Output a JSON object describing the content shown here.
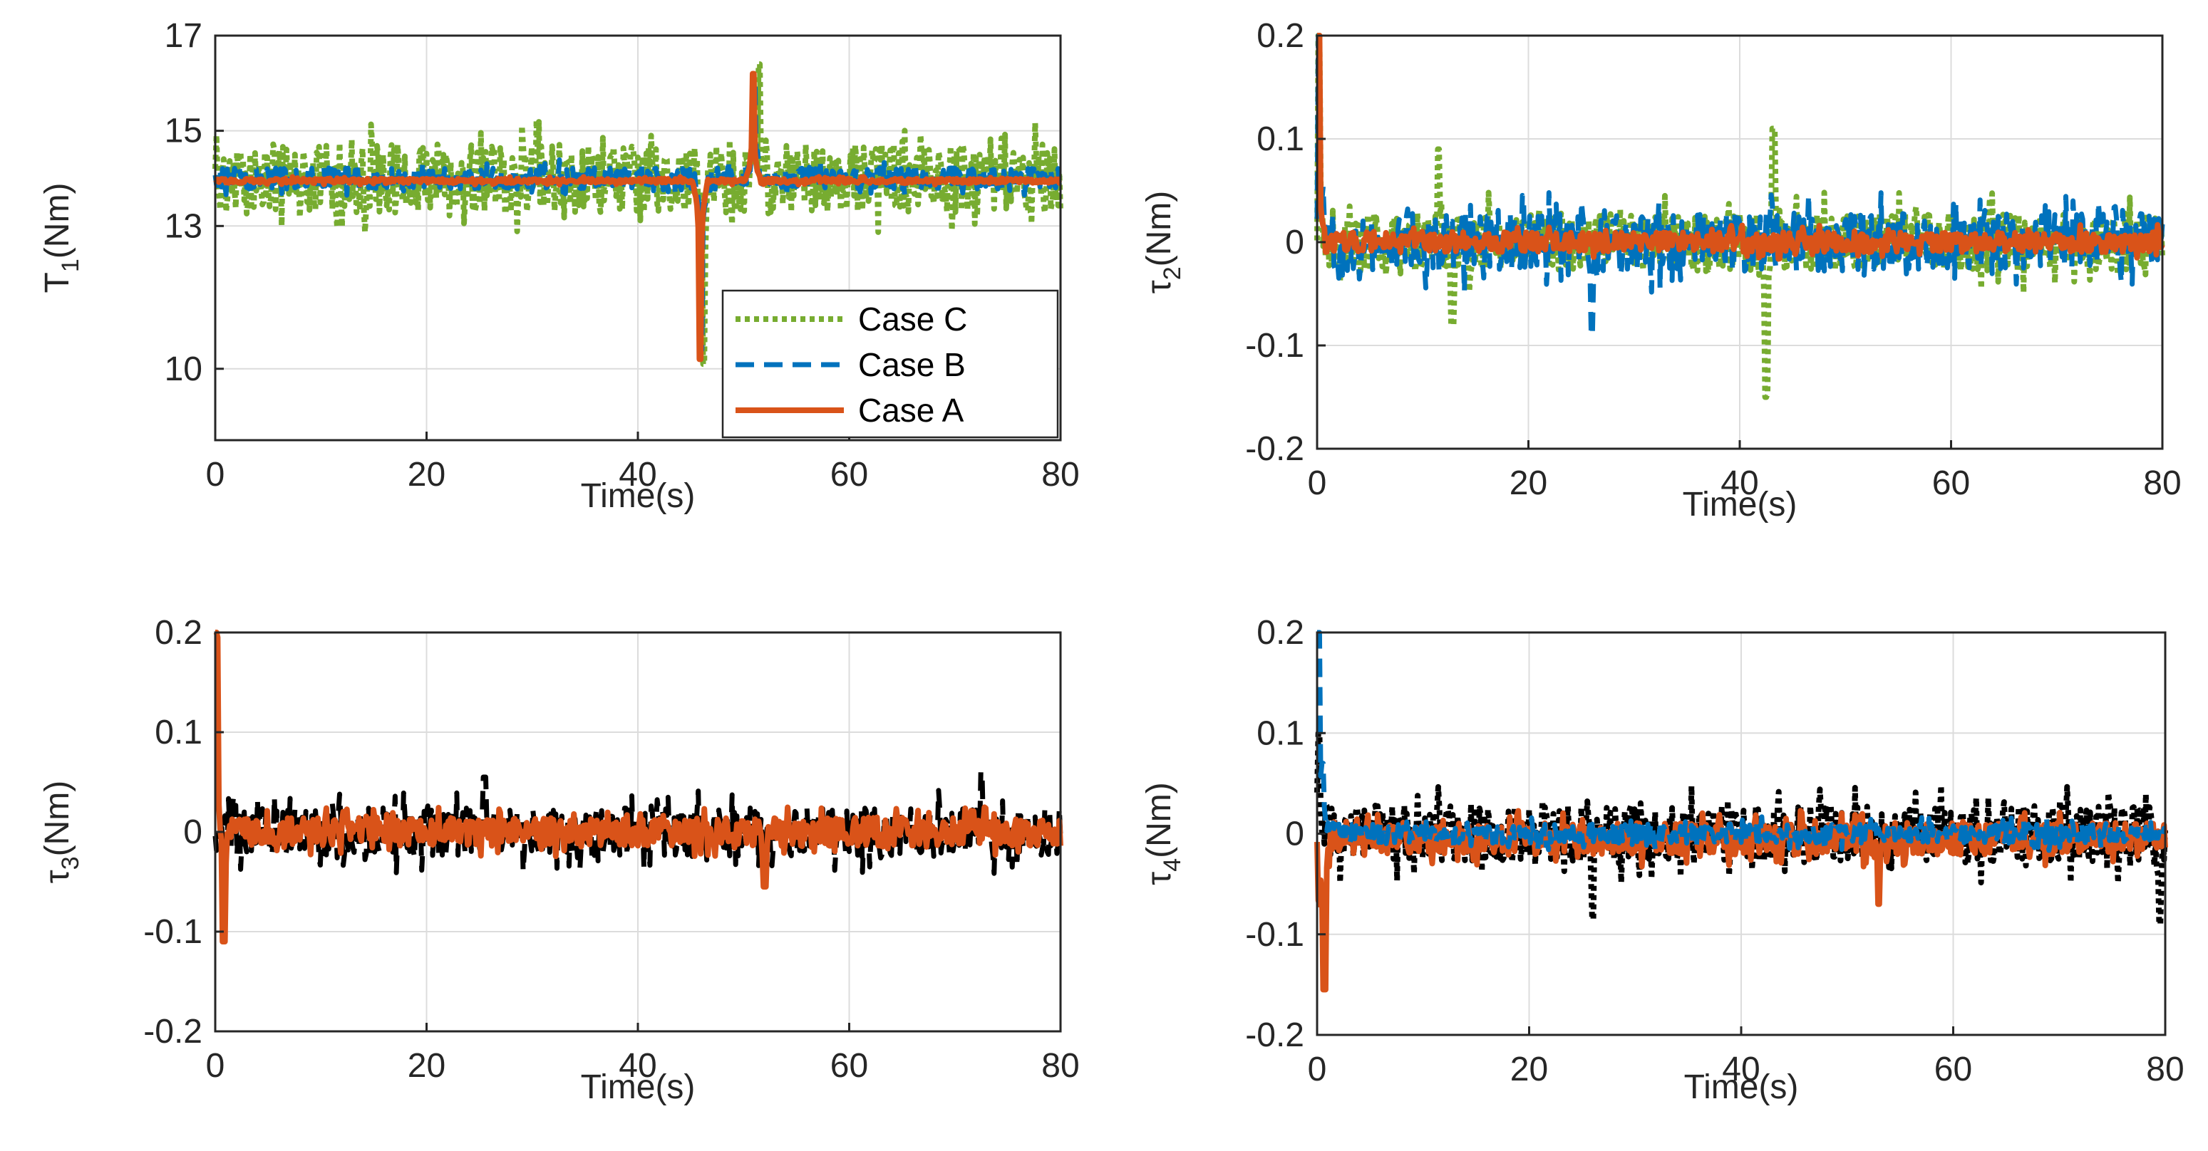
{
  "figure": {
    "xlabel": "Time(s)",
    "x_tick_labels": [
      "0",
      "20",
      "40",
      "60",
      "80"
    ],
    "colors": {
      "case_c": "#77AC30",
      "case_b": "#0072BD",
      "case_a": "#D95319",
      "black": "#000000"
    }
  },
  "chart_data": [
    {
      "type": "line",
      "panel": "top-left",
      "ylabel": {
        "main": "T",
        "sub": "1",
        "rest": "(Nm)"
      },
      "xlim": [
        0,
        80
      ],
      "ylim": [
        8.5,
        17
      ],
      "yticks": [
        10,
        13,
        15,
        17
      ],
      "ytick_labels": [
        "10",
        "13",
        "15",
        "17"
      ],
      "grid": true,
      "legend": {
        "position": "bottom-right",
        "entries": [
          "Case C",
          "Case B",
          "Case A"
        ]
      },
      "series": [
        {
          "name": "Case C",
          "color": "#77AC30",
          "style": "dotted",
          "center": 14.0,
          "noise": 0.9,
          "spikes": [
            [
              46.2,
              10.1
            ],
            [
              51.5,
              16.4
            ]
          ]
        },
        {
          "name": "Case B",
          "color": "#0072BD",
          "style": "dashed",
          "center": 14.0,
          "noise": 0.28,
          "spikes": [
            [
              46.0,
              10.4
            ],
            [
              51.0,
              16.1
            ]
          ]
        },
        {
          "name": "Case A",
          "color": "#D95319",
          "style": "solid",
          "center": 13.95,
          "noise": 0.06,
          "spikes": [
            [
              45.9,
              10.2
            ],
            [
              50.9,
              16.2
            ]
          ]
        }
      ]
    },
    {
      "type": "line",
      "panel": "top-right",
      "ylabel": {
        "main": "τ",
        "sub": "2",
        "rest": "(Nm)"
      },
      "xlim": [
        0,
        80
      ],
      "ylim": [
        -0.2,
        0.2
      ],
      "yticks": [
        -0.2,
        -0.1,
        0,
        0.1,
        0.2
      ],
      "ytick_labels": [
        "-0.2",
        "-0.1",
        "0",
        "0.1",
        "0.2"
      ],
      "grid": true,
      "series": [
        {
          "color": "#77AC30",
          "style": "dotted",
          "center": 0.0,
          "noise": 0.035,
          "spikes": [
            [
              0.2,
              0.2
            ],
            [
              11.5,
              0.09
            ],
            [
              12.8,
              -0.08
            ],
            [
              42.5,
              -0.15
            ],
            [
              43.2,
              0.11
            ]
          ]
        },
        {
          "color": "#0072BD",
          "style": "dashed",
          "center": 0.0,
          "noise": 0.035,
          "spikes": [
            [
              0.2,
              0.2
            ],
            [
              26.0,
              -0.09
            ]
          ]
        },
        {
          "color": "#D95319",
          "style": "solid",
          "center": 0.0,
          "noise": 0.012,
          "spikes": [
            [
              0.1,
              0.2
            ]
          ]
        }
      ]
    },
    {
      "type": "line",
      "panel": "bottom-left",
      "ylabel": {
        "main": "τ",
        "sub": "3",
        "rest": "(Nm)"
      },
      "xlim": [
        0,
        80
      ],
      "ylim": [
        -0.2,
        0.2
      ],
      "yticks": [
        -0.2,
        -0.1,
        0,
        0.1,
        0.2
      ],
      "ytick_labels": [
        "-0.2",
        "-0.1",
        "0",
        "0.1",
        "0.2"
      ],
      "grid": true,
      "series": [
        {
          "color": "#000000",
          "style": "dashed",
          "center": 0.0,
          "noise": 0.03,
          "spikes": [
            [
              25.5,
              0.055
            ],
            [
              72.5,
              0.06
            ]
          ]
        },
        {
          "color": "#D95319",
          "style": "solid",
          "center": 0.0,
          "noise": 0.018,
          "spikes": [
            [
              0.1,
              0.2
            ],
            [
              0.8,
              -0.11
            ],
            [
              52.0,
              -0.055
            ]
          ]
        }
      ]
    },
    {
      "type": "line",
      "panel": "bottom-right",
      "ylabel": {
        "main": "τ",
        "sub": "4",
        "rest": "(Nm)"
      },
      "xlim": [
        0,
        80
      ],
      "ylim": [
        -0.2,
        0.2
      ],
      "yticks": [
        -0.2,
        -0.1,
        0,
        0.1,
        0.2
      ],
      "ytick_labels": [
        "-0.2",
        "-0.1",
        "0",
        "0.1",
        "0.2"
      ],
      "grid": true,
      "series": [
        {
          "color": "#000000",
          "style": "dotted",
          "center": 0.0,
          "noise": 0.035,
          "spikes": [
            [
              0.2,
              0.1
            ],
            [
              26.0,
              -0.085
            ],
            [
              79.5,
              -0.09
            ]
          ]
        },
        {
          "color": "#D95319",
          "style": "solid",
          "center": -0.005,
          "noise": 0.02,
          "spikes": [
            [
              0.2,
              -0.06
            ],
            [
              0.7,
              -0.155
            ],
            [
              53.0,
              -0.07
            ]
          ]
        },
        {
          "color": "#0072BD",
          "style": "dashed",
          "center": 0.0,
          "noise": 0.012,
          "spikes": [
            [
              0.1,
              0.2
            ],
            [
              0.5,
              0.07
            ]
          ]
        }
      ]
    }
  ]
}
